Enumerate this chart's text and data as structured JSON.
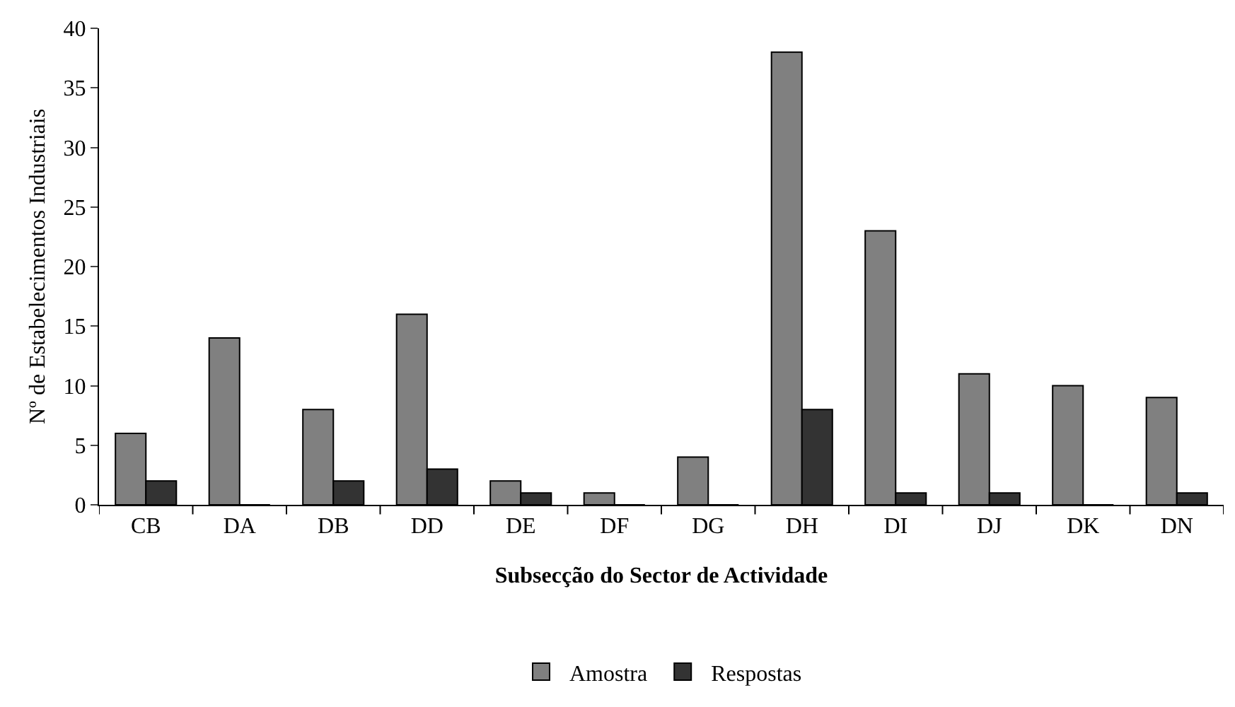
{
  "chart_data": {
    "type": "bar",
    "xlabel": "Subsecção do Sector de Actividade",
    "ylabel": "Nº de Estabelecimentos Industriais",
    "categories": [
      "CB",
      "DA",
      "DB",
      "DD",
      "DE",
      "DF",
      "DG",
      "DH",
      "DI",
      "DJ",
      "DK",
      "DN"
    ],
    "series": [
      {
        "name": "Amostra",
        "color": "#808080",
        "values": [
          6,
          14,
          8,
          16,
          2,
          1,
          4,
          38,
          23,
          11,
          10,
          9
        ]
      },
      {
        "name": "Respostas",
        "color": "#333333",
        "values": [
          2,
          0,
          2,
          3,
          1,
          0,
          0,
          8,
          1,
          1,
          0,
          1
        ]
      }
    ],
    "ylim": [
      0,
      40
    ],
    "yticks": [
      0,
      5,
      10,
      15,
      20,
      25,
      30,
      35,
      40
    ],
    "legend": "bottom"
  }
}
